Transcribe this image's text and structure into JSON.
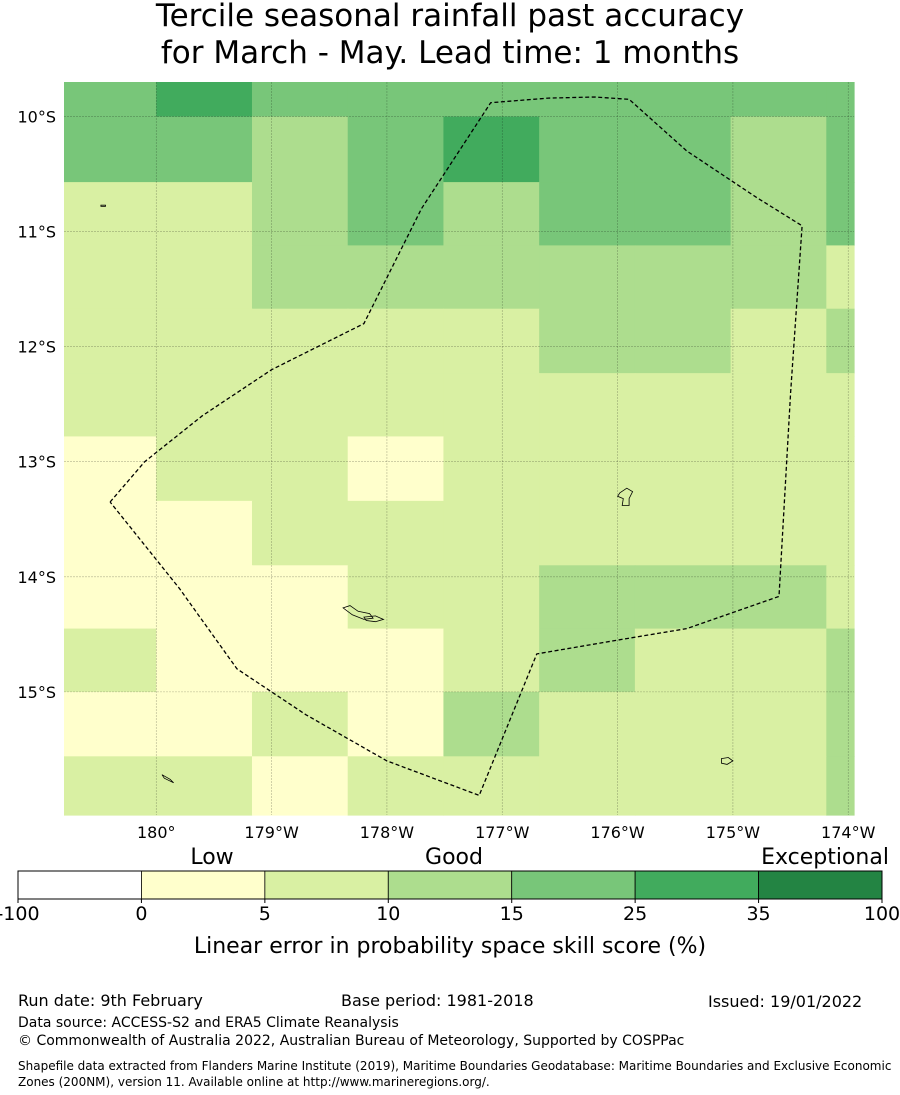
{
  "title": {
    "line1": "Tercile seasonal rainfall past accuracy",
    "line2": "for March - May. Lead time: 1 months"
  },
  "chart_data": {
    "type": "heatmap",
    "title": "Tercile seasonal rainfall past accuracy for March - May. Lead time: 1 months",
    "x_ticks": [
      {
        "value": 180,
        "label": "180°"
      },
      {
        "value": 181,
        "label": "179°W"
      },
      {
        "value": 182,
        "label": "178°W"
      },
      {
        "value": 183,
        "label": "177°W"
      },
      {
        "value": 184,
        "label": "176°W"
      },
      {
        "value": 185,
        "label": "175°W"
      },
      {
        "value": 186,
        "label": "174°W"
      }
    ],
    "y_ticks": [
      {
        "value": -10,
        "label": "10°S"
      },
      {
        "value": -11,
        "label": "11°S"
      },
      {
        "value": -12,
        "label": "12°S"
      },
      {
        "value": -13,
        "label": "13°S"
      },
      {
        "value": -14,
        "label": "14°S"
      },
      {
        "value": -15,
        "label": "15°S"
      }
    ],
    "xlim": [
      179.2,
      186.05
    ],
    "ylim": [
      -16.07,
      -9.7
    ],
    "grid": true,
    "class_colors": [
      "#ffffff",
      "#ffffcc",
      "#d9f0a3",
      "#addd8e",
      "#78c679",
      "#41ab5d",
      "#238443"
    ],
    "grid_cells": {
      "lon_edges": [
        179.2,
        180.0,
        180.83,
        181.66,
        182.49,
        183.32,
        184.15,
        184.98,
        185.81,
        186.05
      ],
      "lat_edges": [
        -9.7,
        -10.0,
        -10.57,
        -11.12,
        -11.67,
        -12.23,
        -12.78,
        -13.34,
        -13.9,
        -14.45,
        -15.0,
        -15.56,
        -16.07
      ],
      "class_rows": [
        [
          4,
          5,
          4,
          4,
          4,
          4,
          4,
          4,
          4
        ],
        [
          4,
          4,
          3,
          4,
          5,
          4,
          4,
          3,
          4
        ],
        [
          2,
          2,
          3,
          4,
          3,
          4,
          4,
          3,
          4
        ],
        [
          2,
          2,
          3,
          3,
          3,
          3,
          3,
          3,
          2
        ],
        [
          2,
          2,
          2,
          2,
          2,
          3,
          3,
          2,
          3
        ],
        [
          2,
          2,
          2,
          2,
          2,
          2,
          2,
          2,
          2
        ],
        [
          1,
          2,
          2,
          1,
          2,
          2,
          2,
          2,
          2
        ],
        [
          1,
          1,
          2,
          2,
          2,
          2,
          2,
          2,
          2
        ],
        [
          1,
          1,
          1,
          2,
          2,
          3,
          3,
          3,
          2
        ],
        [
          2,
          1,
          1,
          1,
          2,
          3,
          2,
          2,
          3
        ],
        [
          1,
          1,
          2,
          1,
          3,
          2,
          2,
          2,
          3
        ],
        [
          2,
          2,
          1,
          2,
          2,
          2,
          2,
          2,
          3
        ]
      ]
    },
    "eez_boundary": [
      [
        179.6,
        -13.35
      ],
      [
        179.9,
        -13.0
      ],
      [
        180.4,
        -12.6
      ],
      [
        181.0,
        -12.2
      ],
      [
        181.8,
        -11.8
      ],
      [
        182.3,
        -10.8
      ],
      [
        182.9,
        -9.88
      ],
      [
        183.4,
        -9.84
      ],
      [
        183.8,
        -9.83
      ],
      [
        184.1,
        -9.85
      ],
      [
        184.6,
        -10.3
      ],
      [
        185.2,
        -10.7
      ],
      [
        185.6,
        -10.95
      ],
      [
        185.5,
        -12.4
      ],
      [
        185.4,
        -14.17
      ],
      [
        184.6,
        -14.45
      ],
      [
        184.0,
        -14.55
      ],
      [
        183.3,
        -14.67
      ],
      [
        182.8,
        -15.9
      ],
      [
        182.0,
        -15.6
      ],
      [
        181.3,
        -15.2
      ],
      [
        180.7,
        -14.8
      ],
      [
        180.2,
        -14.1
      ],
      [
        179.6,
        -13.35
      ]
    ],
    "islands": [
      [
        [
          184.02,
          -13.27
        ],
        [
          184.08,
          -13.23
        ],
        [
          184.13,
          -13.26
        ],
        [
          184.1,
          -13.32
        ],
        [
          184.1,
          -13.38
        ],
        [
          184.04,
          -13.38
        ],
        [
          184.05,
          -13.32
        ],
        [
          184.0,
          -13.3
        ]
      ],
      [
        [
          181.62,
          -14.27
        ],
        [
          181.68,
          -14.25
        ],
        [
          181.75,
          -14.3
        ],
        [
          181.85,
          -14.32
        ],
        [
          181.88,
          -14.36
        ],
        [
          181.8,
          -14.37
        ],
        [
          181.7,
          -14.33
        ]
      ],
      [
        [
          181.8,
          -14.35
        ],
        [
          181.9,
          -14.34
        ],
        [
          181.97,
          -14.37
        ],
        [
          181.9,
          -14.39
        ],
        [
          181.82,
          -14.38
        ]
      ],
      [
        [
          184.9,
          -15.58
        ],
        [
          184.96,
          -15.57
        ],
        [
          185.0,
          -15.6
        ],
        [
          184.95,
          -15.63
        ],
        [
          184.9,
          -15.62
        ]
      ],
      [
        [
          180.05,
          -15.72
        ],
        [
          180.12,
          -15.76
        ],
        [
          180.15,
          -15.79
        ],
        [
          180.07,
          -15.75
        ]
      ],
      [
        [
          179.52,
          -10.77
        ],
        [
          179.56,
          -10.77
        ],
        [
          179.56,
          -10.78
        ],
        [
          179.52,
          -10.78
        ]
      ]
    ],
    "legend": {
      "category_labels": [
        "Low",
        "Good",
        "Exceptional"
      ],
      "boundaries": [
        "-100",
        "0",
        "5",
        "10",
        "15",
        "25",
        "35",
        "100"
      ],
      "label": "Linear error in probability space skill score (%)"
    }
  },
  "footer": {
    "run_date": "Run date: 9th February",
    "base_period": "Base period: 1981-2018",
    "issued": "Issued: 19/01/2022",
    "data_source": "Data source: ACCESS-S2 and ERA5 Climate Reanalysis",
    "copyright": "© Commonwealth of Australia 2022, Australian Bureau of Meteorology, Supported by COSPPac",
    "shapefile": "Shapefile data extracted from Flanders Marine Institute (2019), Maritime Boundaries Geodatabase: Maritime Boundaries and Exclusive Economic Zones (200NM), version 11. Available online at http://www.marineregions.org/."
  }
}
